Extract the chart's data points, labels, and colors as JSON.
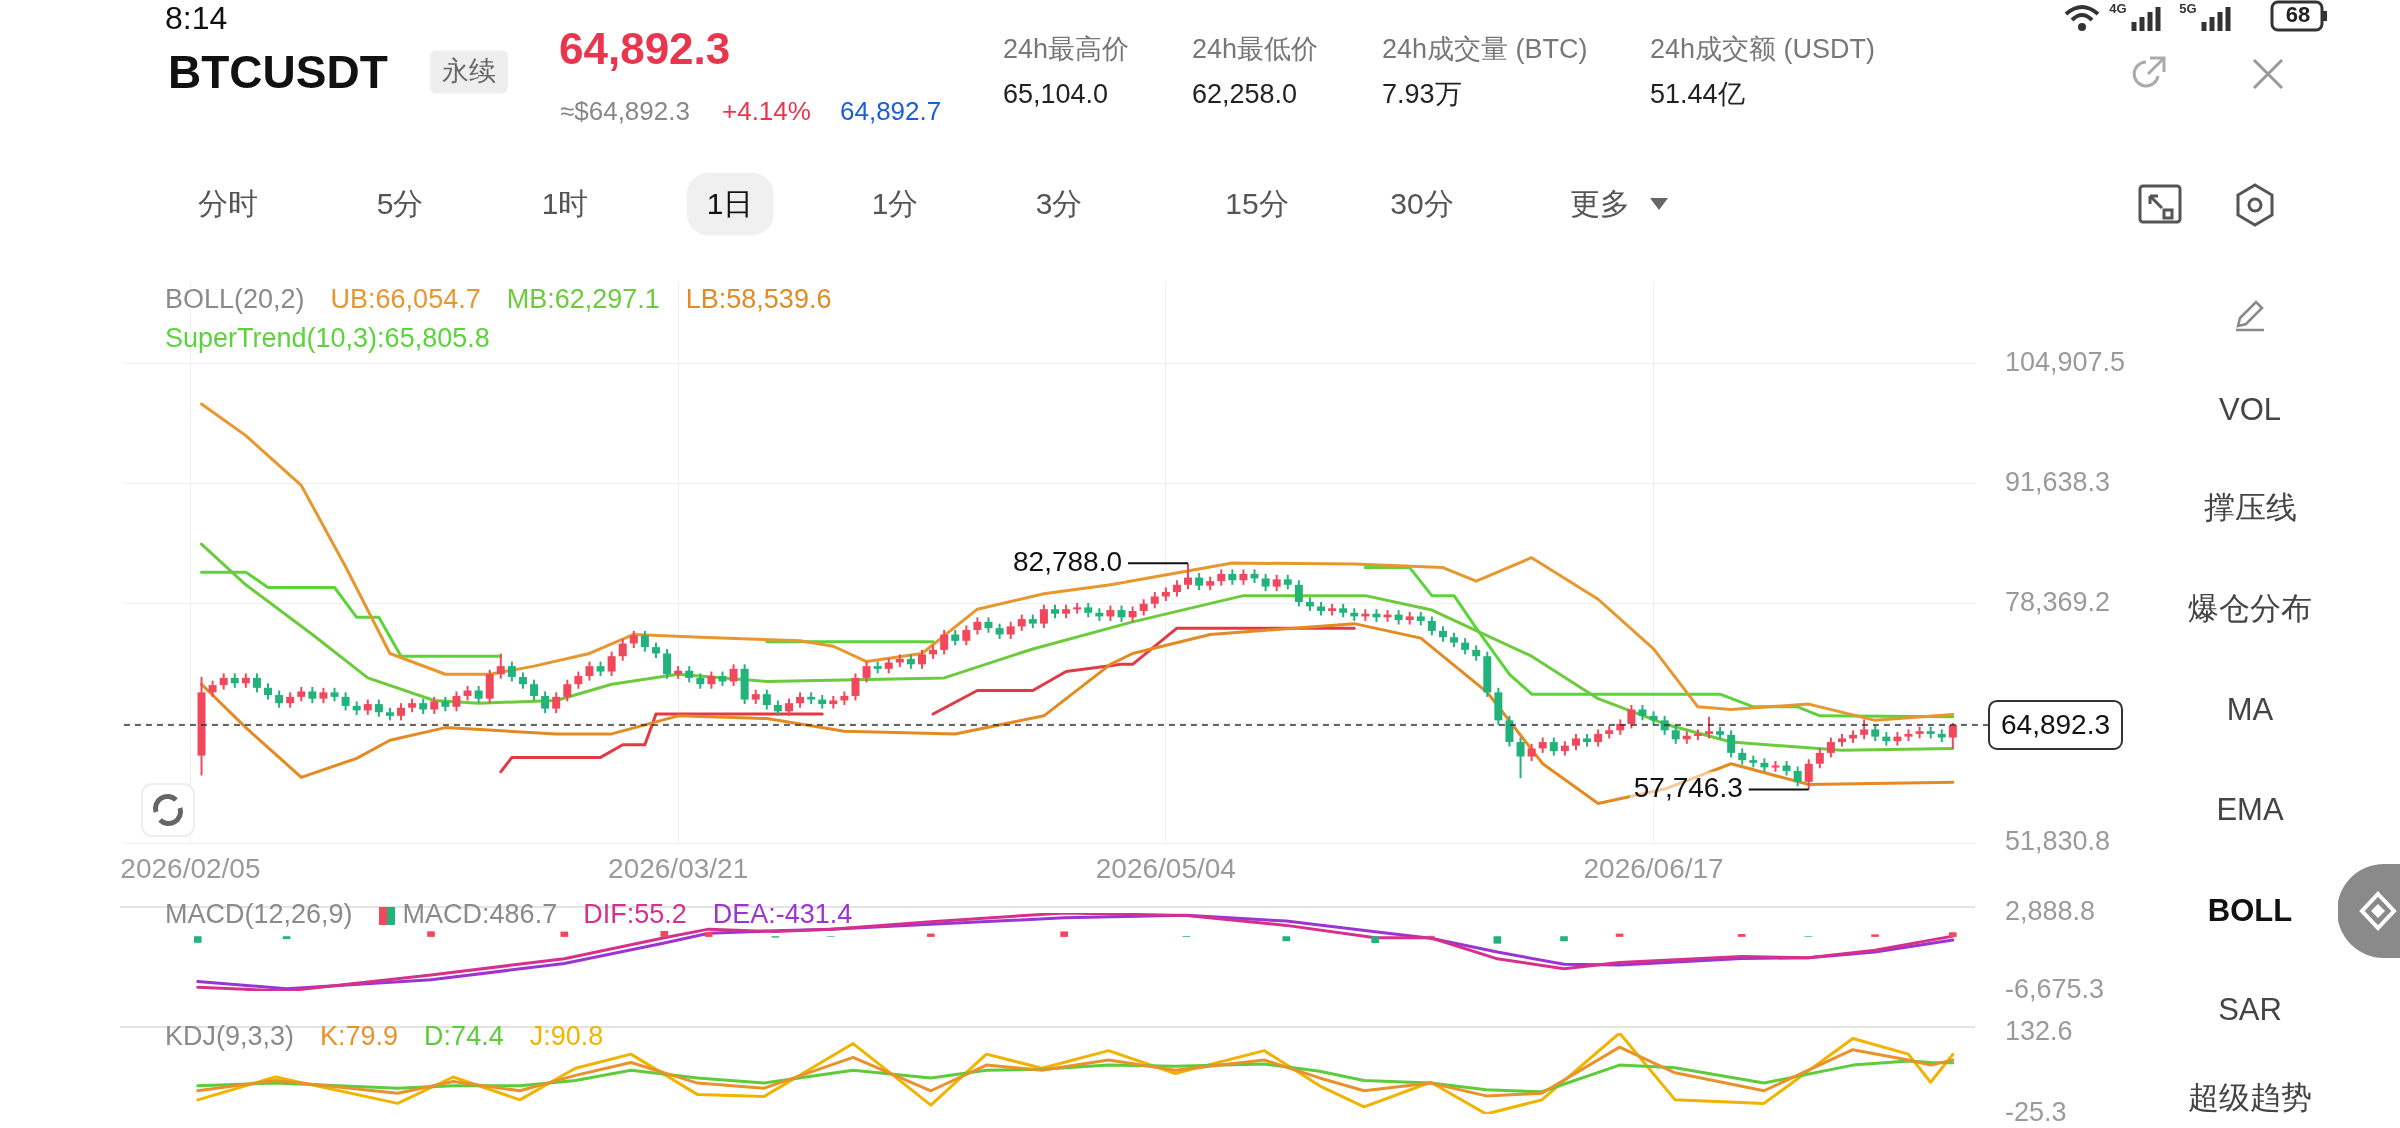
{
  "chart_data": [
    {
      "type": "other",
      "annotations": [
        "8:14",
        "BTCUSDT",
        "永续",
        "64,892.3",
        "≈$64,892.3",
        "+4.14%",
        "64,892.7",
        "24h最高价",
        "65,104.0",
        "24h最低价",
        "62,258.0",
        "24h成交量 (BTC)",
        "7.93万",
        "24h成交额 (USDT)",
        "51.44亿",
        "分时",
        "5分",
        "1时",
        "1日",
        "1分",
        "3分",
        "15分",
        "30分",
        "更多",
        "VOL",
        "撑压线",
        "爆仓分布",
        "MA",
        "EMA",
        "BOLL",
        "SAR",
        "超级趋势",
        "4G",
        "5G",
        "68"
      ]
    },
    {
      "type": "candlestick",
      "legend_title": "BOLL(20,2)",
      "legend": "top left",
      "grid": true,
      "x": [
        "2026-02-06",
        "2026-02-07",
        "2026-02-08",
        "2026-02-09",
        "2026-02-10",
        "2026-02-11",
        "2026-02-12",
        "2026-02-13",
        "2026-02-14",
        "2026-02-15",
        "2026-02-16",
        "2026-02-17",
        "2026-02-18",
        "2026-02-19",
        "2026-02-20",
        "2026-02-21",
        "2026-02-22",
        "2026-02-23",
        "2026-02-24",
        "2026-02-25",
        "2026-02-26",
        "2026-02-27",
        "2026-02-28",
        "2026-03-01",
        "2026-03-02",
        "2026-03-03",
        "2026-03-04",
        "2026-03-05",
        "2026-03-06",
        "2026-03-07",
        "2026-03-08",
        "2026-03-09",
        "2026-03-10",
        "2026-03-11",
        "2026-03-12",
        "2026-03-13",
        "2026-03-14",
        "2026-03-15",
        "2026-03-16",
        "2026-03-17",
        "2026-03-18",
        "2026-03-19",
        "2026-03-20",
        "2026-03-21",
        "2026-03-22",
        "2026-03-23",
        "2026-03-24",
        "2026-03-25",
        "2026-03-26",
        "2026-03-27",
        "2026-03-28",
        "2026-03-29",
        "2026-03-30",
        "2026-03-31",
        "2026-04-01",
        "2026-04-02",
        "2026-04-03",
        "2026-04-04",
        "2026-04-05",
        "2026-04-06",
        "2026-04-07",
        "2026-04-08",
        "2026-04-09",
        "2026-04-10",
        "2026-04-11",
        "2026-04-12",
        "2026-04-13",
        "2026-04-14",
        "2026-04-15",
        "2026-04-16",
        "2026-04-17",
        "2026-04-18",
        "2026-04-19",
        "2026-04-20",
        "2026-04-21",
        "2026-04-22",
        "2026-04-23",
        "2026-04-24",
        "2026-04-25",
        "2026-04-26",
        "2026-04-27",
        "2026-04-28",
        "2026-04-29",
        "2026-04-30",
        "2026-05-01",
        "2026-05-02",
        "2026-05-03",
        "2026-05-04",
        "2026-05-05",
        "2026-05-06",
        "2026-05-07",
        "2026-05-08",
        "2026-05-09",
        "2026-05-10",
        "2026-05-11",
        "2026-05-12",
        "2026-05-13",
        "2026-05-14",
        "2026-05-15",
        "2026-05-16",
        "2026-05-17",
        "2026-05-18",
        "2026-05-19",
        "2026-05-20",
        "2026-05-21",
        "2026-05-22",
        "2026-05-23",
        "2026-05-24",
        "2026-05-25",
        "2026-05-26",
        "2026-05-27",
        "2026-05-28",
        "2026-05-29",
        "2026-05-30",
        "2026-05-31",
        "2026-06-01",
        "2026-06-02",
        "2026-06-03",
        "2026-06-04",
        "2026-06-05",
        "2026-06-06",
        "2026-06-07",
        "2026-06-08",
        "2026-06-09",
        "2026-06-10",
        "2026-06-11",
        "2026-06-12",
        "2026-06-13",
        "2026-06-14",
        "2026-06-15",
        "2026-06-16",
        "2026-06-17",
        "2026-06-18",
        "2026-06-19",
        "2026-06-20",
        "2026-06-21",
        "2026-06-22",
        "2026-06-23",
        "2026-06-24",
        "2026-06-25",
        "2026-06-26",
        "2026-06-27",
        "2026-06-28",
        "2026-06-29",
        "2026-06-30",
        "2026-07-01",
        "2026-07-02",
        "2026-07-03",
        "2026-07-04",
        "2026-07-05",
        "2026-07-06",
        "2026-07-07",
        "2026-07-08",
        "2026-07-09",
        "2026-07-10",
        "2026-07-11",
        "2026-07-12",
        "2026-07-13",
        "2026-07-14"
      ],
      "ohlc": [
        [
          61500,
          70200,
          59300,
          68500
        ],
        [
          68500,
          69800,
          68000,
          69300
        ],
        [
          69300,
          70600,
          68800,
          70100
        ],
        [
          70100,
          70600,
          69000,
          69500
        ],
        [
          69500,
          70600,
          69000,
          70100
        ],
        [
          70100,
          70600,
          68500,
          69000
        ],
        [
          69000,
          69500,
          67700,
          68200
        ],
        [
          68200,
          68700,
          66800,
          67300
        ],
        [
          67300,
          68500,
          66800,
          68000
        ],
        [
          68000,
          69100,
          67500,
          68600
        ],
        [
          68600,
          69100,
          67300,
          67800
        ],
        [
          67800,
          69000,
          67300,
          68500
        ],
        [
          68500,
          69000,
          67500,
          68000
        ],
        [
          68000,
          68500,
          66500,
          67000
        ],
        [
          67000,
          67500,
          66000,
          66500
        ],
        [
          66500,
          67700,
          66000,
          67200
        ],
        [
          67200,
          67700,
          65800,
          66300
        ],
        [
          66300,
          66800,
          65400,
          65900
        ],
        [
          65900,
          67300,
          65400,
          66800
        ],
        [
          66800,
          67800,
          66300,
          67300
        ],
        [
          67300,
          67800,
          66100,
          66600
        ],
        [
          66600,
          68000,
          66100,
          67500
        ],
        [
          67500,
          68000,
          66400,
          66900
        ],
        [
          66900,
          68600,
          66400,
          68100
        ],
        [
          68100,
          69200,
          67600,
          68700
        ],
        [
          68700,
          69200,
          67300,
          67800
        ],
        [
          67800,
          71000,
          67300,
          70500
        ],
        [
          70500,
          72800,
          70000,
          71400
        ],
        [
          71400,
          71900,
          69700,
          70200
        ],
        [
          70200,
          70700,
          68900,
          69400
        ],
        [
          69400,
          69900,
          67600,
          68100
        ],
        [
          68100,
          68600,
          66200,
          66700
        ],
        [
          66700,
          68500,
          66200,
          68000
        ],
        [
          68000,
          69900,
          67500,
          69400
        ],
        [
          69400,
          70800,
          68900,
          70300
        ],
        [
          70300,
          71900,
          69800,
          71400
        ],
        [
          71400,
          71900,
          70300,
          70800
        ],
        [
          70800,
          73000,
          70300,
          72500
        ],
        [
          72500,
          74400,
          72000,
          73900
        ],
        [
          73900,
          75300,
          73400,
          74800
        ],
        [
          74800,
          75300,
          73000,
          73500
        ],
        [
          73500,
          74000,
          72300,
          72800
        ],
        [
          72800,
          73300,
          70000,
          70500
        ],
        [
          70500,
          71400,
          70000,
          70900
        ],
        [
          70900,
          71400,
          69600,
          70100
        ],
        [
          70100,
          70600,
          68900,
          69400
        ],
        [
          69400,
          70800,
          68900,
          70300
        ],
        [
          70300,
          70800,
          69200,
          69700
        ],
        [
          69700,
          71600,
          69200,
          71100
        ],
        [
          71100,
          71600,
          67200,
          67700
        ],
        [
          67700,
          68800,
          67200,
          68300
        ],
        [
          68300,
          68800,
          66600,
          67100
        ],
        [
          67100,
          67600,
          65900,
          66400
        ],
        [
          66400,
          67800,
          65900,
          67300
        ],
        [
          67300,
          68500,
          66800,
          68000
        ],
        [
          68000,
          68500,
          67200,
          67700
        ],
        [
          67700,
          68200,
          66700,
          67200
        ],
        [
          67200,
          68100,
          66700,
          67600
        ],
        [
          67600,
          68600,
          67100,
          68100
        ],
        [
          68100,
          70600,
          67600,
          70100
        ],
        [
          70100,
          71900,
          69600,
          71400
        ],
        [
          71400,
          71900,
          70600,
          71100
        ],
        [
          71100,
          72300,
          70600,
          71800
        ],
        [
          71800,
          72700,
          71300,
          72200
        ],
        [
          72200,
          72700,
          71100,
          71600
        ],
        [
          71600,
          73200,
          71100,
          72700
        ],
        [
          72700,
          73700,
          72200,
          73200
        ],
        [
          73200,
          75400,
          72700,
          74900
        ],
        [
          74900,
          75400,
          73700,
          74200
        ],
        [
          74200,
          75900,
          73700,
          75400
        ],
        [
          75400,
          76800,
          74900,
          76300
        ],
        [
          76300,
          76800,
          75100,
          75600
        ],
        [
          75600,
          76100,
          74400,
          74900
        ],
        [
          74900,
          76300,
          74400,
          75800
        ],
        [
          75800,
          77100,
          75300,
          76600
        ],
        [
          76600,
          77100,
          75600,
          76100
        ],
        [
          76100,
          78200,
          75600,
          77700
        ],
        [
          77700,
          78200,
          76700,
          77200
        ],
        [
          77200,
          78200,
          76700,
          77700
        ],
        [
          77700,
          78400,
          77200,
          77900
        ],
        [
          77900,
          78400,
          76800,
          77300
        ],
        [
          77300,
          77800,
          76400,
          76900
        ],
        [
          76900,
          78100,
          76400,
          77600
        ],
        [
          77600,
          78100,
          76300,
          76800
        ],
        [
          76800,
          78000,
          76300,
          77500
        ],
        [
          77500,
          78800,
          77000,
          78300
        ],
        [
          78300,
          79600,
          77800,
          79100
        ],
        [
          79100,
          80100,
          78600,
          79600
        ],
        [
          79600,
          80900,
          79100,
          80400
        ],
        [
          80400,
          82788,
          79900,
          81200
        ],
        [
          81200,
          81700,
          79800,
          80300
        ],
        [
          80300,
          81300,
          79800,
          80800
        ],
        [
          80800,
          82100,
          80300,
          81600
        ],
        [
          81600,
          82100,
          80400,
          80900
        ],
        [
          80900,
          82100,
          80400,
          81600
        ],
        [
          81600,
          82100,
          80600,
          81100
        ],
        [
          81100,
          81600,
          79700,
          80200
        ],
        [
          80200,
          81500,
          79700,
          81000
        ],
        [
          81000,
          81500,
          79900,
          80400
        ],
        [
          80400,
          80900,
          78000,
          78500
        ],
        [
          78500,
          79000,
          77500,
          78000
        ],
        [
          78000,
          78500,
          77000,
          77500
        ],
        [
          77500,
          78300,
          77000,
          77800
        ],
        [
          77800,
          78300,
          76800,
          77300
        ],
        [
          77300,
          77800,
          76400,
          76900
        ],
        [
          76900,
          77700,
          76400,
          77200
        ],
        [
          77200,
          77700,
          76300,
          76800
        ],
        [
          76800,
          77600,
          76300,
          77100
        ],
        [
          77100,
          77600,
          76000,
          76500
        ],
        [
          76500,
          77400,
          76000,
          76900
        ],
        [
          76900,
          77400,
          75900,
          76400
        ],
        [
          76400,
          76900,
          74800,
          75300
        ],
        [
          75300,
          75800,
          74100,
          74600
        ],
        [
          74600,
          75100,
          73500,
          74000
        ],
        [
          74000,
          74500,
          72700,
          73200
        ],
        [
          73200,
          73700,
          72000,
          72500
        ],
        [
          72500,
          73000,
          68000,
          68500
        ],
        [
          68500,
          69000,
          64900,
          65400
        ],
        [
          65400,
          65900,
          62500,
          63000
        ],
        [
          63000,
          63500,
          59000,
          61400
        ],
        [
          61400,
          62800,
          60900,
          62300
        ],
        [
          62300,
          63500,
          61800,
          63000
        ],
        [
          63000,
          63500,
          61500,
          62000
        ],
        [
          62000,
          63100,
          61500,
          62600
        ],
        [
          62600,
          63900,
          62100,
          63400
        ],
        [
          63400,
          63900,
          62500,
          63000
        ],
        [
          63000,
          64400,
          62500,
          63900
        ],
        [
          63900,
          64800,
          63400,
          64300
        ],
        [
          64300,
          65500,
          63800,
          65000
        ],
        [
          65000,
          67100,
          64500,
          66600
        ],
        [
          66600,
          67100,
          65400,
          65900
        ],
        [
          65900,
          66400,
          64900,
          65400
        ],
        [
          65400,
          65900,
          63800,
          64300
        ],
        [
          64300,
          64800,
          62800,
          63300
        ],
        [
          63300,
          64200,
          62800,
          63700
        ],
        [
          63700,
          64400,
          63200,
          63900
        ],
        [
          63900,
          65800,
          63400,
          64200
        ],
        [
          64200,
          64700,
          63300,
          63800
        ],
        [
          63800,
          64300,
          61300,
          61800
        ],
        [
          61800,
          62300,
          60500,
          61000
        ],
        [
          61000,
          61500,
          60200,
          60700
        ],
        [
          60700,
          61200,
          59700,
          60200
        ],
        [
          60200,
          60900,
          59700,
          60400
        ],
        [
          60400,
          60900,
          59300,
          59800
        ],
        [
          59800,
          60300,
          58100,
          58600
        ],
        [
          58600,
          61100,
          57746.3,
          60600
        ],
        [
          60600,
          62300,
          60100,
          61800
        ],
        [
          61800,
          63500,
          61300,
          63000
        ],
        [
          63000,
          63900,
          62500,
          63400
        ],
        [
          63400,
          64300,
          62900,
          63800
        ],
        [
          63800,
          65500,
          63300,
          64400
        ],
        [
          64400,
          64900,
          63100,
          63600
        ],
        [
          63600,
          64100,
          62600,
          63100
        ],
        [
          63100,
          64100,
          62600,
          63600
        ],
        [
          63600,
          64400,
          63100,
          63900
        ],
        [
          63900,
          64700,
          63400,
          64200
        ],
        [
          64200,
          64700,
          63400,
          63900
        ],
        [
          63900,
          64400,
          63000,
          63500
        ],
        [
          63500,
          65104,
          62258,
          64892.3
        ]
      ],
      "colors": [
        "#f2485c",
        "#f2485c",
        "#f2485c",
        "#22b37d",
        "#f2485c",
        "#22b37d",
        "#22b37d",
        "#22b37d",
        "#f2485c",
        "#f2485c",
        "#22b37d",
        "#f2485c",
        "#22b37d",
        "#22b37d",
        "#22b37d",
        "#f2485c",
        "#22b37d",
        "#22b37d",
        "#f2485c",
        "#f2485c",
        "#22b37d",
        "#f2485c",
        "#22b37d",
        "#f2485c",
        "#f2485c",
        "#22b37d",
        "#f2485c",
        "#f2485c",
        "#22b37d",
        "#22b37d",
        "#22b37d",
        "#22b37d",
        "#f2485c",
        "#f2485c",
        "#f2485c",
        "#f2485c",
        "#22b37d",
        "#f2485c",
        "#f2485c",
        "#f2485c",
        "#22b37d",
        "#22b37d",
        "#22b37d",
        "#f2485c",
        "#22b37d",
        "#22b37d",
        "#f2485c",
        "#22b37d",
        "#f2485c",
        "#22b37d",
        "#f2485c",
        "#22b37d",
        "#22b37d",
        "#f2485c",
        "#f2485c",
        "#22b37d",
        "#22b37d",
        "#f2485c",
        "#f2485c",
        "#f2485c",
        "#f2485c",
        "#22b37d",
        "#f2485c",
        "#f2485c",
        "#22b37d",
        "#f2485c",
        "#f2485c",
        "#f2485c",
        "#22b37d",
        "#f2485c",
        "#f2485c",
        "#22b37d",
        "#22b37d",
        "#f2485c",
        "#f2485c",
        "#22b37d",
        "#f2485c",
        "#22b37d",
        "#f2485c",
        "#f2485c",
        "#22b37d",
        "#22b37d",
        "#f2485c",
        "#22b37d",
        "#f2485c",
        "#f2485c",
        "#f2485c",
        "#f2485c",
        "#f2485c",
        "#f2485c",
        "#22b37d",
        "#f2485c",
        "#f2485c",
        "#22b37d",
        "#f2485c",
        "#22b37d",
        "#22b37d",
        "#f2485c",
        "#22b37d",
        "#22b37d",
        "#22b37d",
        "#22b37d",
        "#f2485c",
        "#22b37d",
        "#22b37d",
        "#f2485c",
        "#22b37d",
        "#f2485c",
        "#22b37d",
        "#f2485c",
        "#22b37d",
        "#22b37d",
        "#22b37d",
        "#22b37d",
        "#22b37d",
        "#22b37d",
        "#22b37d",
        "#22b37d",
        "#22b37d",
        "#22b37d",
        "#f2485c",
        "#f2485c",
        "#22b37d",
        "#f2485c",
        "#f2485c",
        "#22b37d",
        "#f2485c",
        "#f2485c",
        "#f2485c",
        "#f2485c",
        "#22b37d",
        "#22b37d",
        "#22b37d",
        "#22b37d",
        "#f2485c",
        "#f2485c",
        "#f2485c",
        "#22b37d",
        "#22b37d",
        "#22b37d",
        "#22b37d",
        "#22b37d",
        "#f2485c",
        "#22b37d",
        "#22b37d",
        "#f2485c",
        "#f2485c",
        "#f2485c",
        "#f2485c",
        "#f2485c",
        "#f2485c",
        "#22b37d",
        "#22b37d",
        "#f2485c",
        "#f2485c",
        "#f2485c",
        "#22b37d",
        "#22b37d",
        "#f2485c"
      ],
      "series": [
        {
          "name": "UB:66,054.7",
          "color": "#e8962e",
          "type": "line",
          "x": [
            "2026-02-06",
            "2026-02-10",
            "2026-02-15",
            "2026-02-19",
            "2026-02-23",
            "2026-02-28",
            "2026-03-04",
            "2026-03-08",
            "2026-03-13",
            "2026-03-17",
            "2026-03-23",
            "2026-04-01",
            "2026-04-04",
            "2026-04-07",
            "2026-04-12",
            "2026-04-17",
            "2026-04-23",
            "2026-04-29",
            "2026-05-10",
            "2026-05-21",
            "2026-05-29",
            "2026-06-01",
            "2026-06-06",
            "2026-06-12",
            "2026-06-17",
            "2026-06-21",
            "2026-06-24",
            "2026-07-01",
            "2026-07-07",
            "2026-07-14"
          ],
          "values": [
            100400,
            96900,
            91400,
            82400,
            72800,
            70500,
            70500,
            71400,
            72800,
            74900,
            74600,
            74200,
            73600,
            71900,
            72800,
            77700,
            79400,
            80400,
            82800,
            82700,
            82300,
            80800,
            83400,
            78800,
            73300,
            66900,
            66600,
            67200,
            65400,
            66054.7
          ]
        },
        {
          "name": "MB:62,297.1",
          "color": "#6ccb3c",
          "type": "line",
          "x": [
            "2026-02-06",
            "2026-02-10",
            "2026-02-16",
            "2026-02-21",
            "2026-02-27",
            "2026-03-03",
            "2026-03-10",
            "2026-03-15",
            "2026-03-21",
            "2026-03-29",
            "2026-04-14",
            "2026-04-22",
            "2026-05-01",
            "2026-05-11",
            "2026-05-22",
            "2026-05-28",
            "2026-06-06",
            "2026-06-12",
            "2026-06-18",
            "2026-06-24",
            "2026-07-04",
            "2026-07-14"
          ],
          "values": [
            84900,
            80400,
            74900,
            70100,
            67600,
            67300,
            67600,
            69400,
            70500,
            69700,
            70100,
            73300,
            76300,
            79200,
            79200,
            77600,
            72500,
            67800,
            65000,
            63000,
            62100,
            62297.1
          ]
        },
        {
          "name": "LB:58,539.6",
          "color": "#e48a22",
          "type": "line",
          "x": [
            "2026-02-06",
            "2026-02-10",
            "2026-02-15",
            "2026-02-20",
            "2026-02-23",
            "2026-02-28",
            "2026-03-10",
            "2026-03-15",
            "2026-03-21",
            "2026-03-29",
            "2026-04-05",
            "2026-04-15",
            "2026-04-23",
            "2026-04-29",
            "2026-05-01",
            "2026-05-08",
            "2026-05-21",
            "2026-05-27",
            "2026-06-02",
            "2026-06-07",
            "2026-06-12",
            "2026-06-18",
            "2026-06-24",
            "2026-07-01",
            "2026-07-14"
          ],
          "values": [
            69400,
            64600,
            59100,
            61200,
            63200,
            64600,
            63900,
            63900,
            65900,
            65600,
            64200,
            63900,
            65900,
            71600,
            72800,
            74900,
            76100,
            74500,
            68500,
            60600,
            56200,
            57800,
            60600,
            58300,
            58539.6
          ]
        },
        {
          "name": "SuperTrend(10,3):65,805.8",
          "color": "#5ad43a",
          "type": "line",
          "x": [
            "2026-02-06",
            "2026-02-10",
            "2026-02-12",
            "2026-02-18",
            "2026-02-20",
            "2026-02-22",
            "2026-02-24",
            "2026-03-05",
            "2026-03-06",
            "2026-03-29",
            "2026-04-13",
            "2026-04-14",
            "2026-05-22",
            "2026-05-26",
            "2026-05-28",
            "2026-05-30",
            "2026-06-01",
            "2026-06-04",
            "2026-06-06",
            "2026-06-23",
            "2026-06-26",
            "2026-06-30",
            "2026-07-02",
            "2026-07-14"
          ],
          "values": [
            81800,
            81800,
            80100,
            80100,
            76800,
            76800,
            72500,
            72500,
            null,
            74100,
            74100,
            null,
            82300,
            82300,
            79200,
            79200,
            75600,
            70500,
            68300,
            68300,
            66900,
            66900,
            65900,
            65805.8
          ]
        },
        {
          "color": "#e23a45",
          "type": "line",
          "x": [
            "2026-03-05",
            "2026-03-06",
            "2026-03-14",
            "2026-03-16",
            "2026-03-18",
            "2026-03-19",
            "2026-04-03",
            "2026-04-07",
            "2026-04-13",
            "2026-04-17",
            "2026-04-22",
            "2026-04-25",
            "2026-04-30",
            "2026-05-01",
            "2026-05-05",
            "2026-05-21"
          ],
          "values": [
            59700,
            61300,
            61300,
            62700,
            62700,
            66100,
            66100,
            null,
            66100,
            68700,
            68700,
            70800,
            71600,
            71600,
            75600,
            75600
          ]
        }
      ],
      "xlim": [
        "2026-01-30",
        "2026-07-16"
      ],
      "xticks": [
        {
          "value": "2026-02-05",
          "label": "2026/02/05"
        },
        {
          "value": "2026-03-21",
          "label": "2026/03/21"
        },
        {
          "value": "2026-05-04",
          "label": "2026/05/04"
        },
        {
          "value": "2026-06-17",
          "label": "2026/06/17"
        }
      ],
      "ylim": [
        51830.8,
        113900
      ],
      "yticks": [
        {
          "value": 51830.8,
          "label": "51,830.8"
        },
        {
          "value": 65100.1,
          "label": null
        },
        {
          "value": 78369.2,
          "label": "78,369.2"
        },
        {
          "value": 91638.3,
          "label": "91,638.3"
        },
        {
          "value": 104907.5,
          "label": "104,907.5"
        }
      ],
      "ref_lines": [
        {
          "axis": "y",
          "value": 64892.3,
          "label": "64,892.3",
          "line_style": "dashed",
          "color": "#333333"
        }
      ],
      "annotations": [
        {
          "text": "82,788.0",
          "x": "2026-05-06",
          "y": 82788
        },
        {
          "text": "57,746.3",
          "x": "2026-07-01",
          "y": 57746.3
        }
      ]
    },
    {
      "type": "line",
      "legend_title": "MACD(12,26,9)",
      "legend": "top left",
      "tick_labels": "y",
      "x": [
        "2026-02-06",
        "2026-02-14",
        "2026-02-27",
        "2026-03-11",
        "2026-03-20",
        "2026-03-24",
        "2026-03-30",
        "2026-04-04",
        "2026-04-13",
        "2026-04-25",
        "2026-05-06",
        "2026-05-15",
        "2026-05-23",
        "2026-05-28",
        "2026-06-03",
        "2026-06-09",
        "2026-06-14",
        "2026-06-25",
        "2026-07-01",
        "2026-07-07",
        "2026-07-14"
      ],
      "xlim": [
        "2026-01-30",
        "2026-07-16"
      ],
      "ylim": [
        -6675.3,
        2888.8
      ],
      "yticks": [
        {
          "value": -6675.3,
          "label": "-6,675.3"
        },
        {
          "value": 2888.8,
          "label": "2,888.8"
        }
      ],
      "series": [
        {
          "name": "MACD:486.7",
          "type": "bar",
          "colors": [
            "#22b37d",
            "#22b37d",
            "#f2485c",
            "#f2485c",
            "#f2485c",
            "#f2485c",
            "#22b37d",
            "#22b37d",
            "#f2485c",
            "#f2485c",
            "#22b37d",
            "#22b37d",
            "#22b37d",
            "#f2485c",
            "#22b37d",
            "#22b37d",
            "#f2485c",
            "#f2485c",
            "#22b37d",
            "#f2485c",
            "#f2485c"
          ],
          "values": [
            -720,
            -275,
            600,
            570,
            650,
            510,
            -90,
            0,
            330,
            589,
            -20,
            -530,
            -750,
            50,
            -830,
            -540,
            320,
            270,
            0,
            230,
            486.7
          ]
        },
        {
          "name": "DIF:55.2",
          "color": "#d6308c",
          "type": "line",
          "values": [
            -6220,
            -6675.3,
            -4700,
            -2730,
            -150,
            910,
            610,
            900,
            1830,
            2888.8,
            2580,
            1370,
            -150,
            -150,
            -2730,
            -3940,
            -3180,
            -2430,
            -2600,
            -1670,
            55.2
          ]
        },
        {
          "name": "DEA:-431.4",
          "color": "#9c35d0",
          "type": "line",
          "values": [
            -5500,
            -6400,
            -5300,
            -3300,
            -800,
            400,
            700,
            900,
            1500,
            2300,
            2600,
            1900,
            600,
            -200,
            -1900,
            -3400,
            -3500,
            -2700,
            -2600,
            -1900,
            -431.4
          ]
        }
      ]
    },
    {
      "type": "line",
      "legend_title": "KDJ(9,3,3)",
      "legend": "top left",
      "tick_labels": "y",
      "x": [
        "2026-02-06",
        "2026-02-13",
        "2026-02-24",
        "2026-03-01",
        "2026-03-07",
        "2026-03-12",
        "2026-03-17",
        "2026-03-23",
        "2026-03-29",
        "2026-04-06",
        "2026-04-13",
        "2026-04-18",
        "2026-04-23",
        "2026-04-29",
        "2026-05-05",
        "2026-05-13",
        "2026-05-18",
        "2026-05-22",
        "2026-05-28",
        "2026-06-02",
        "2026-06-07",
        "2026-06-14",
        "2026-06-19",
        "2026-06-27",
        "2026-07-05",
        "2026-07-10",
        "2026-07-12",
        "2026-07-14"
      ],
      "xlim": [
        "2026-01-30",
        "2026-07-16"
      ],
      "ylim": [
        -25.3,
        132.6
      ],
      "yticks": [
        -25.3,
        132.6
      ],
      "series": [
        {
          "name": "K:79.9",
          "color": "#e8922c",
          "type": "line",
          "values": [
            20,
            40,
            15,
            38,
            20,
            50,
            75,
            35,
            25,
            85,
            20,
            70,
            60,
            80,
            60,
            80,
            45,
            20,
            35,
            10,
            15,
            105,
            55,
            20,
            100,
            80,
            70,
            79.9
          ]
        },
        {
          "name": "D:74.4",
          "color": "#5ccc3a",
          "type": "line",
          "values": [
            30,
            35,
            25,
            30,
            30,
            40,
            60,
            45,
            35,
            60,
            45,
            60,
            62,
            70,
            68,
            72,
            58,
            40,
            35,
            22,
            18,
            70,
            65,
            35,
            70,
            78,
            75,
            74.4
          ]
        },
        {
          "name": "J:90.8",
          "color": "#f0b400",
          "type": "line",
          "values": [
            2.3,
            46.8,
            -4.6,
            46.8,
            2.3,
            64,
            91.4,
            12.5,
            9,
            112,
            -8,
            91.4,
            64,
            98.3,
            53.7,
            98.3,
            29.7,
            -11.5,
            36.6,
            -25.3,
            2.3,
            132.6,
            2.3,
            -4.6,
            122,
            91.4,
            36.6,
            90.8
          ]
        }
      ]
    }
  ]
}
